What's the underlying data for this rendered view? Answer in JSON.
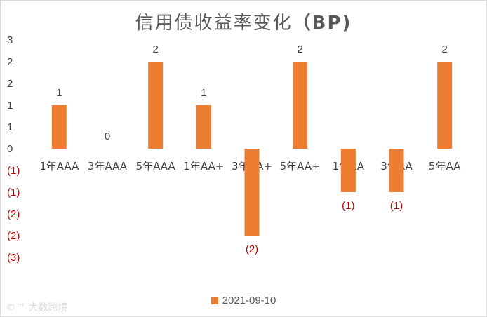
{
  "watermark": "©™ 大数跨境",
  "chart_data": {
    "type": "bar",
    "title": "信用债收益率变化",
    "title_suffix": "（BP)",
    "categories": [
      "1年AAA",
      "3年AAA",
      "5年AAA",
      "1年AA+",
      "3年AA+",
      "5年AA+",
      "1年AA",
      "3年AA",
      "5年AA"
    ],
    "series": [
      {
        "name": "2021-09-10",
        "values": [
          1,
          0,
          2,
          1,
          -2,
          2,
          -1,
          -1,
          2
        ],
        "data_labels": [
          "1",
          "0",
          "2",
          "1",
          "(2)",
          "2",
          "(1)",
          "(1)",
          "2"
        ]
      }
    ],
    "y_ticks": [
      {
        "value": 2.5,
        "label": "3"
      },
      {
        "value": 2.0,
        "label": "2"
      },
      {
        "value": 1.5,
        "label": "2"
      },
      {
        "value": 1.0,
        "label": "1"
      },
      {
        "value": 0.5,
        "label": "1"
      },
      {
        "value": 0.0,
        "label": "0"
      },
      {
        "value": -0.5,
        "label": "(1)"
      },
      {
        "value": -1.0,
        "label": "(1)"
      },
      {
        "value": -1.5,
        "label": "(2)"
      },
      {
        "value": -2.0,
        "label": "(2)"
      },
      {
        "value": -2.5,
        "label": "(3)"
      }
    ],
    "ylim": [
      -2.5,
      2.5
    ],
    "grid": false,
    "legend_position": "bottom",
    "colors": {
      "bar": "#ED7D31",
      "negative_label": "#C00000",
      "text": "#404040"
    }
  }
}
